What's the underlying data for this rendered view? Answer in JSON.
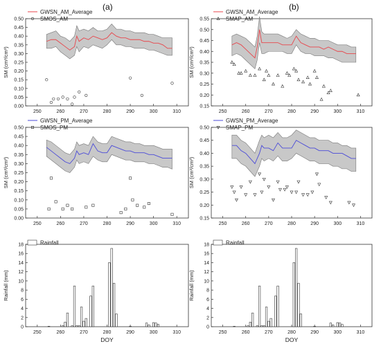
{
  "panel_labels": [
    "(a)",
    "(b)"
  ],
  "xlabel": "DOY",
  "chart_data": [
    {
      "type": "line",
      "panel": "a-am",
      "ylabel": "SM (cm³/cm³)",
      "xlim": [
        245,
        315
      ],
      "ylim": [
        0,
        0.5
      ],
      "xticks": [
        250,
        260,
        270,
        280,
        290,
        300,
        310
      ],
      "yticks": [
        0.0,
        0.05,
        0.1,
        0.15,
        0.2,
        0.25,
        0.3,
        0.35,
        0.4,
        0.45,
        0.5
      ],
      "legend": [
        "GWSN_AM_Average",
        "SMOS_AM"
      ],
      "band": {
        "x": [
          254,
          256,
          258,
          260,
          262,
          264,
          266,
          267,
          268,
          270,
          272,
          274,
          276,
          278,
          280,
          282,
          284,
          286,
          288,
          290,
          292,
          294,
          296,
          298,
          300,
          302,
          304,
          306,
          308
        ],
        "upper": [
          0.41,
          0.42,
          0.43,
          0.4,
          0.39,
          0.37,
          0.4,
          0.46,
          0.43,
          0.44,
          0.43,
          0.45,
          0.43,
          0.43,
          0.44,
          0.47,
          0.44,
          0.44,
          0.43,
          0.43,
          0.42,
          0.42,
          0.42,
          0.41,
          0.41,
          0.4,
          0.39,
          0.39,
          0.39
        ],
        "lower": [
          0.33,
          0.33,
          0.34,
          0.31,
          0.29,
          0.27,
          0.29,
          0.34,
          0.31,
          0.34,
          0.33,
          0.35,
          0.34,
          0.33,
          0.35,
          0.38,
          0.35,
          0.35,
          0.34,
          0.34,
          0.33,
          0.33,
          0.33,
          0.32,
          0.32,
          0.31,
          0.3,
          0.29,
          0.29
        ]
      },
      "series": [
        {
          "name": "GWSN_AM_Average",
          "x": [
            254,
            256,
            258,
            260,
            262,
            264,
            266,
            267,
            268,
            270,
            272,
            274,
            276,
            278,
            280,
            282,
            284,
            286,
            288,
            290,
            292,
            294,
            296,
            298,
            300,
            302,
            304,
            306,
            308
          ],
          "y": [
            0.37,
            0.38,
            0.38,
            0.36,
            0.34,
            0.32,
            0.34,
            0.4,
            0.37,
            0.39,
            0.38,
            0.4,
            0.39,
            0.38,
            0.39,
            0.42,
            0.4,
            0.39,
            0.39,
            0.38,
            0.38,
            0.38,
            0.37,
            0.37,
            0.36,
            0.36,
            0.35,
            0.33,
            0.33
          ]
        },
        {
          "name": "SMOS_AM",
          "x": [
            254,
            256,
            257,
            259,
            261,
            263,
            265,
            266,
            268,
            271,
            290,
            295,
            308
          ],
          "y": [
            0.15,
            0.02,
            0.04,
            0.04,
            0.05,
            0.04,
            0.01,
            0.05,
            0.08,
            0.06,
            0.16,
            0.06,
            0.13
          ]
        }
      ]
    },
    {
      "type": "line",
      "panel": "b-am",
      "ylabel": "SM (cm³/cm³)",
      "xlim": [
        245,
        315
      ],
      "ylim": [
        0.15,
        0.55
      ],
      "xticks": [
        250,
        260,
        270,
        280,
        290,
        300,
        310
      ],
      "yticks": [
        0.15,
        0.2,
        0.25,
        0.3,
        0.35,
        0.4,
        0.45,
        0.5,
        0.55
      ],
      "legend": [
        "GWSN_AM_Average",
        "SMAP_AM"
      ],
      "band": {
        "x": [
          254,
          256,
          258,
          260,
          262,
          264,
          265,
          266,
          267,
          268,
          270,
          272,
          274,
          276,
          278,
          280,
          282,
          284,
          286,
          288,
          290,
          292,
          294,
          296,
          298,
          300,
          302,
          304,
          306,
          308
        ],
        "upper": [
          0.47,
          0.48,
          0.47,
          0.46,
          0.44,
          0.42,
          0.47,
          0.56,
          0.49,
          0.48,
          0.48,
          0.48,
          0.48,
          0.47,
          0.46,
          0.47,
          0.5,
          0.48,
          0.47,
          0.46,
          0.46,
          0.45,
          0.45,
          0.45,
          0.44,
          0.43,
          0.43,
          0.43,
          0.42,
          0.42
        ],
        "lower": [
          0.38,
          0.39,
          0.38,
          0.36,
          0.34,
          0.32,
          0.36,
          0.44,
          0.39,
          0.39,
          0.4,
          0.4,
          0.4,
          0.4,
          0.39,
          0.39,
          0.43,
          0.4,
          0.39,
          0.39,
          0.38,
          0.38,
          0.38,
          0.37,
          0.37,
          0.36,
          0.35,
          0.35,
          0.35,
          0.35
        ]
      },
      "series": [
        {
          "name": "GWSN_AM_Average",
          "x": [
            254,
            256,
            258,
            260,
            262,
            264,
            265,
            266,
            267,
            268,
            270,
            272,
            274,
            276,
            278,
            280,
            282,
            284,
            286,
            288,
            290,
            292,
            294,
            296,
            298,
            300,
            302,
            304,
            306,
            308
          ],
          "y": [
            0.43,
            0.44,
            0.43,
            0.41,
            0.39,
            0.37,
            0.42,
            0.5,
            0.44,
            0.44,
            0.44,
            0.44,
            0.44,
            0.43,
            0.43,
            0.43,
            0.47,
            0.44,
            0.43,
            0.42,
            0.42,
            0.42,
            0.41,
            0.42,
            0.41,
            0.4,
            0.4,
            0.39,
            0.39,
            0.39
          ]
        },
        {
          "name": "SMAP_AM",
          "x": [
            254,
            255,
            257,
            258,
            260,
            262,
            264,
            266,
            268,
            269,
            270,
            272,
            274,
            276,
            278,
            279,
            281,
            282,
            283,
            285,
            287,
            288,
            290,
            291,
            293,
            294,
            296,
            297,
            309
          ],
          "y": [
            0.35,
            0.34,
            0.3,
            0.3,
            0.31,
            0.29,
            0.29,
            0.32,
            0.27,
            0.31,
            0.29,
            0.25,
            0.29,
            0.24,
            0.3,
            0.29,
            0.32,
            0.31,
            0.27,
            0.26,
            0.28,
            0.25,
            0.31,
            0.28,
            0.18,
            0.24,
            0.21,
            0.22,
            0.2
          ]
        }
      ]
    },
    {
      "type": "line",
      "panel": "a-pm",
      "ylabel": "SM (cm³/cm³)",
      "xlim": [
        245,
        315
      ],
      "ylim": [
        0,
        0.5
      ],
      "xticks": [
        250,
        260,
        270,
        280,
        290,
        300,
        310
      ],
      "yticks": [
        0.0,
        0.05,
        0.1,
        0.15,
        0.2,
        0.25,
        0.3,
        0.35,
        0.4,
        0.45,
        0.5
      ],
      "legend": [
        "GWSN_PM_Average",
        "SMOS_PM"
      ],
      "band": {
        "x": [
          254,
          256,
          258,
          260,
          262,
          264,
          266,
          267,
          268,
          270,
          272,
          274,
          276,
          278,
          280,
          282,
          284,
          286,
          288,
          290,
          292,
          294,
          296,
          298,
          300,
          302,
          304,
          306,
          308
        ],
        "upper": [
          0.43,
          0.42,
          0.4,
          0.38,
          0.36,
          0.35,
          0.38,
          0.42,
          0.4,
          0.41,
          0.4,
          0.45,
          0.42,
          0.41,
          0.41,
          0.45,
          0.44,
          0.43,
          0.42,
          0.42,
          0.41,
          0.41,
          0.4,
          0.4,
          0.4,
          0.39,
          0.38,
          0.38,
          0.38
        ],
        "lower": [
          0.34,
          0.32,
          0.3,
          0.28,
          0.26,
          0.25,
          0.28,
          0.32,
          0.3,
          0.31,
          0.3,
          0.34,
          0.32,
          0.31,
          0.31,
          0.35,
          0.34,
          0.33,
          0.32,
          0.32,
          0.31,
          0.31,
          0.31,
          0.3,
          0.3,
          0.29,
          0.28,
          0.28,
          0.27
        ]
      },
      "series": [
        {
          "name": "GWSN_PM_Average",
          "x": [
            254,
            256,
            258,
            260,
            262,
            264,
            266,
            267,
            268,
            270,
            272,
            274,
            276,
            278,
            280,
            282,
            284,
            286,
            288,
            290,
            292,
            294,
            296,
            298,
            300,
            302,
            304,
            306,
            308
          ],
          "y": [
            0.39,
            0.37,
            0.35,
            0.33,
            0.31,
            0.3,
            0.33,
            0.37,
            0.35,
            0.36,
            0.35,
            0.41,
            0.37,
            0.36,
            0.36,
            0.4,
            0.39,
            0.38,
            0.37,
            0.37,
            0.36,
            0.36,
            0.36,
            0.35,
            0.35,
            0.34,
            0.33,
            0.33,
            0.33
          ]
        },
        {
          "name": "SMOS_PM",
          "x": [
            255,
            256,
            258,
            261,
            263,
            265,
            271,
            274,
            286,
            288,
            290,
            291,
            293,
            296,
            298,
            308
          ],
          "y": [
            0.05,
            0.22,
            0.09,
            0.05,
            0.07,
            0.05,
            0.06,
            0.07,
            0.03,
            0.05,
            0.22,
            0.1,
            0.07,
            0.06,
            0.08,
            0.02
          ]
        }
      ]
    },
    {
      "type": "line",
      "panel": "b-pm",
      "ylabel": "SM (cm³/cm³)",
      "xlim": [
        245,
        315
      ],
      "ylim": [
        0.15,
        0.5
      ],
      "xticks": [
        250,
        260,
        270,
        280,
        290,
        300,
        310
      ],
      "yticks": [
        0.15,
        0.2,
        0.25,
        0.3,
        0.35,
        0.4,
        0.45,
        0.5
      ],
      "legend": [
        "GWSN_PM_Average",
        "SMAP_PM"
      ],
      "band": {
        "x": [
          254,
          256,
          258,
          260,
          262,
          264,
          266,
          267,
          268,
          270,
          272,
          274,
          276,
          278,
          280,
          282,
          284,
          286,
          288,
          290,
          292,
          294,
          296,
          298,
          300,
          302,
          304,
          306,
          308
        ],
        "upper": [
          0.47,
          0.47,
          0.45,
          0.44,
          0.42,
          0.4,
          0.45,
          0.47,
          0.46,
          0.47,
          0.46,
          0.48,
          0.46,
          0.46,
          0.47,
          0.49,
          0.48,
          0.47,
          0.46,
          0.46,
          0.45,
          0.45,
          0.45,
          0.44,
          0.44,
          0.43,
          0.43,
          0.42,
          0.42
        ],
        "lower": [
          0.38,
          0.38,
          0.36,
          0.35,
          0.33,
          0.31,
          0.35,
          0.38,
          0.37,
          0.38,
          0.37,
          0.39,
          0.37,
          0.37,
          0.38,
          0.4,
          0.39,
          0.38,
          0.37,
          0.37,
          0.36,
          0.36,
          0.36,
          0.35,
          0.35,
          0.34,
          0.34,
          0.33,
          0.33
        ]
      },
      "series": [
        {
          "name": "GWSN_PM_Average",
          "x": [
            254,
            256,
            258,
            260,
            262,
            264,
            266,
            267,
            268,
            270,
            272,
            274,
            276,
            278,
            280,
            282,
            284,
            286,
            288,
            290,
            292,
            294,
            296,
            298,
            300,
            302,
            304,
            306,
            308
          ],
          "y": [
            0.43,
            0.43,
            0.41,
            0.4,
            0.38,
            0.36,
            0.4,
            0.43,
            0.42,
            0.42,
            0.41,
            0.44,
            0.42,
            0.42,
            0.42,
            0.45,
            0.44,
            0.43,
            0.42,
            0.42,
            0.41,
            0.41,
            0.41,
            0.4,
            0.4,
            0.4,
            0.39,
            0.38,
            0.38
          ]
        },
        {
          "name": "SMAP_PM",
          "x": [
            254,
            255,
            256,
            258,
            260,
            262,
            264,
            266,
            267,
            268,
            270,
            272,
            274,
            275,
            277,
            278,
            280,
            282,
            283,
            285,
            287,
            289,
            291,
            292,
            295,
            297,
            305,
            307
          ],
          "y": [
            0.27,
            0.25,
            0.22,
            0.27,
            0.24,
            0.29,
            0.24,
            0.32,
            0.25,
            0.3,
            0.27,
            0.22,
            0.29,
            0.26,
            0.26,
            0.27,
            0.25,
            0.25,
            0.29,
            0.24,
            0.24,
            0.25,
            0.32,
            0.28,
            0.23,
            0.21,
            0.21,
            0.2
          ]
        }
      ]
    },
    {
      "type": "bar",
      "panel": "a-rain",
      "ylabel": "Rainfall (mm)",
      "xlabel": "DOY",
      "xlim": [
        245,
        315
      ],
      "ylim": [
        0,
        18
      ],
      "xticks": [
        250,
        260,
        270,
        280,
        290,
        300,
        310
      ],
      "yticks": [
        0,
        2,
        4,
        6,
        8,
        10,
        12,
        14,
        16,
        18
      ],
      "legend": [
        "Rainfall"
      ],
      "x": [
        255,
        261,
        262,
        263,
        265,
        266,
        267,
        268,
        269,
        270,
        271,
        273,
        274,
        281,
        282,
        283,
        284,
        290,
        297,
        298,
        300,
        301,
        302
      ],
      "values": [
        0.1,
        0.2,
        1.0,
        3.0,
        0.2,
        8.9,
        0.2,
        0.2,
        4.3,
        1.2,
        1.8,
        6.7,
        8.9,
        14.0,
        17.1,
        9.5,
        2.8,
        0.1,
        0.8,
        0.4,
        0.9,
        0.8,
        0.5
      ]
    },
    {
      "type": "bar",
      "panel": "b-rain",
      "ylabel": "Rainfall (mm)",
      "xlabel": "DOY",
      "xlim": [
        245,
        315
      ],
      "ylim": [
        0,
        18
      ],
      "xticks": [
        250,
        260,
        270,
        280,
        290,
        300,
        310
      ],
      "yticks": [
        0,
        2,
        4,
        6,
        8,
        10,
        12,
        14,
        16,
        18
      ],
      "legend": [
        "Rainfall"
      ],
      "x": [
        255,
        261,
        262,
        263,
        265,
        266,
        267,
        268,
        269,
        270,
        271,
        273,
        274,
        281,
        282,
        283,
        284,
        290,
        297,
        298,
        300,
        301,
        302
      ],
      "values": [
        0.1,
        0.2,
        1.0,
        3.0,
        0.2,
        8.9,
        0.2,
        0.2,
        4.3,
        1.2,
        1.8,
        6.7,
        8.9,
        14.0,
        17.1,
        9.5,
        2.8,
        0.1,
        0.8,
        0.4,
        0.9,
        0.8,
        0.5
      ]
    }
  ]
}
